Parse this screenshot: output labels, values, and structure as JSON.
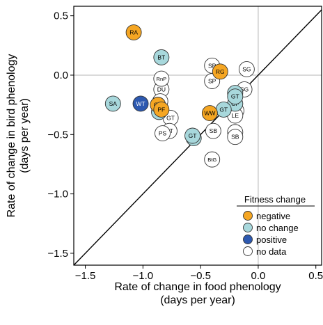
{
  "chart_data": {
    "type": "scatter",
    "xlabel": [
      "Rate of change in food phenology",
      "(days per year)"
    ],
    "ylabel": [
      "Rate of change in bird phenology",
      "(days per year)"
    ],
    "xlim": [
      -1.6,
      0.55
    ],
    "ylim": [
      -1.6,
      0.58
    ],
    "xticks": [
      -1.5,
      -1.0,
      -0.5,
      0.0,
      0.5
    ],
    "yticks": [
      -1.5,
      -1.0,
      -0.5,
      0.0,
      0.5
    ],
    "xtick_labels": [
      "−1.5",
      "−1.0",
      "−0.5",
      "0.0",
      "0.5"
    ],
    "ytick_labels": [
      "−1.5",
      "−1.0",
      "−0.5",
      "0.0",
      "0.5"
    ],
    "reference_lines": {
      "x_zero": true,
      "y_zero": true,
      "one_to_one": true
    },
    "grid": false,
    "legend": {
      "title": "Fitness change",
      "position": "bottom-right",
      "entries": [
        {
          "label": "negative",
          "color": "#f5a623"
        },
        {
          "label": "no change",
          "color": "#a8d8dc"
        },
        {
          "label": "positive",
          "color": "#2d59b0"
        },
        {
          "label": "no data",
          "color": "#ffffff"
        }
      ]
    },
    "points": [
      {
        "label": "SB",
        "x": -0.39,
        "y": -0.47,
        "category": "no data"
      },
      {
        "label": "SB",
        "x": -0.2,
        "y": -0.48,
        "category": "no data"
      },
      {
        "label": "SB",
        "x": -0.2,
        "y": -0.52,
        "category": "no data"
      },
      {
        "label": "BtG",
        "x": -0.4,
        "y": -0.71,
        "category": "no data"
      },
      {
        "label": "SP",
        "x": -0.4,
        "y": 0.08,
        "category": "no data"
      },
      {
        "label": "SP",
        "x": -0.4,
        "y": -0.05,
        "category": "no data"
      },
      {
        "label": "SG",
        "x": -0.1,
        "y": 0.05,
        "category": "no data"
      },
      {
        "label": "SG",
        "x": -0.12,
        "y": -0.12,
        "category": "no data"
      },
      {
        "label": "SS",
        "x": -0.2,
        "y": -0.29,
        "category": "no data"
      },
      {
        "label": "SS",
        "x": -0.19,
        "y": -0.3,
        "category": "no data"
      },
      {
        "label": "LE",
        "x": -0.2,
        "y": -0.34,
        "category": "no data"
      },
      {
        "label": "CF",
        "x": -0.2,
        "y": -0.24,
        "category": "no change"
      },
      {
        "label": "GT",
        "x": -0.2,
        "y": -0.15,
        "category": "no change"
      },
      {
        "label": "GT",
        "x": -0.2,
        "y": -0.18,
        "category": "no change"
      },
      {
        "label": "GT",
        "x": -0.3,
        "y": -0.29,
        "category": "no change"
      },
      {
        "label": "RG",
        "x": -0.33,
        "y": 0.03,
        "category": "negative"
      },
      {
        "label": "WW",
        "x": -0.42,
        "y": -0.32,
        "category": "negative"
      },
      {
        "label": "GT",
        "x": -0.56,
        "y": -0.53,
        "category": "no change"
      },
      {
        "label": "GT",
        "x": -0.57,
        "y": -0.51,
        "category": "no change"
      },
      {
        "label": "GT",
        "x": -0.76,
        "y": -0.36,
        "category": "no data"
      },
      {
        "label": "BT",
        "x": -0.77,
        "y": -0.47,
        "category": "no data"
      },
      {
        "label": "PS",
        "x": -0.83,
        "y": -0.49,
        "category": "no data"
      },
      {
        "label": "DU",
        "x": -0.84,
        "y": -0.12,
        "category": "no data"
      },
      {
        "label": "RnP",
        "x": -0.84,
        "y": -0.03,
        "category": "no data"
      },
      {
        "label": "BT",
        "x": -0.84,
        "y": 0.15,
        "category": "no change"
      },
      {
        "label": "GS",
        "x": -0.85,
        "y": -0.22,
        "category": "no data"
      },
      {
        "label": "GS",
        "x": -0.86,
        "y": -0.27,
        "category": "no change"
      },
      {
        "label": "GS",
        "x": -0.86,
        "y": -0.31,
        "category": "no change"
      },
      {
        "label": "GS",
        "x": -0.87,
        "y": -0.25,
        "category": "negative"
      },
      {
        "label": "PF",
        "x": -0.84,
        "y": -0.29,
        "category": "negative"
      },
      {
        "label": "WT",
        "x": -1.02,
        "y": -0.24,
        "category": "positive"
      },
      {
        "label": "SA",
        "x": -1.26,
        "y": -0.24,
        "category": "no change"
      },
      {
        "label": "RA",
        "x": -1.08,
        "y": 0.36,
        "category": "negative"
      }
    ]
  }
}
